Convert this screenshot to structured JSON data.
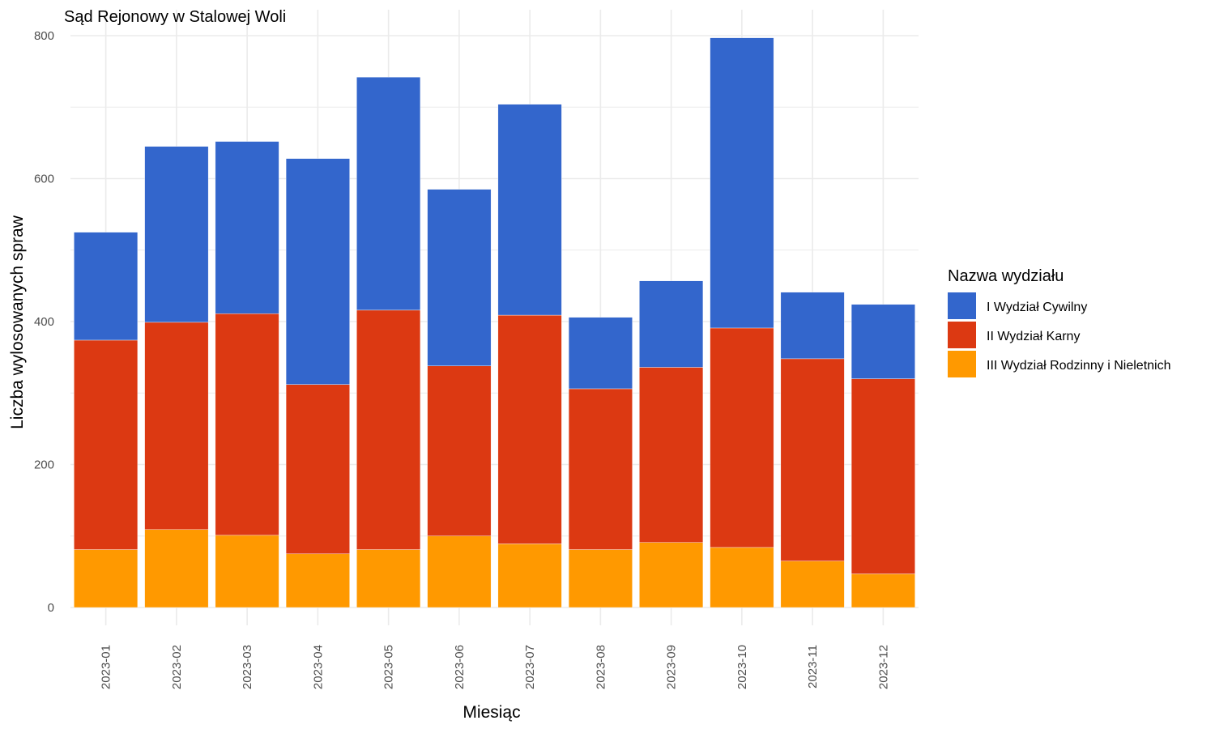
{
  "chart_data": {
    "type": "bar",
    "stacked": true,
    "title": "Sąd Rejonowy w Stalowej Woli",
    "xlabel": "Miesiąc",
    "ylabel": "Liczba wylosowanych spraw",
    "ylim": [
      0,
      800
    ],
    "yticks": [
      "0",
      "200",
      "400",
      "600",
      "800"
    ],
    "grid": true,
    "legend_position": "right",
    "legend_title": "Nazwa wydziału",
    "categories": [
      "2023-01",
      "2023-02",
      "2023-03",
      "2023-04",
      "2023-05",
      "2023-06",
      "2023-07",
      "2023-08",
      "2023-09",
      "2023-10",
      "2023-11",
      "2023-12"
    ],
    "series": [
      {
        "name": "I Wydział Cywilny",
        "color": "#3366CC",
        "values": [
          151,
          246,
          241,
          316,
          326,
          247,
          295,
          100,
          121,
          406,
          93,
          104
        ]
      },
      {
        "name": "II Wydział Karny",
        "color": "#DC3912",
        "values": [
          293,
          290,
          310,
          237,
          335,
          238,
          320,
          225,
          245,
          307,
          283,
          273
        ]
      },
      {
        "name": "III Wydział Rodzinny i Nieletnich",
        "color": "#FF9900",
        "values": [
          81,
          109,
          101,
          75,
          81,
          100,
          89,
          81,
          91,
          84,
          65,
          47
        ]
      }
    ]
  }
}
